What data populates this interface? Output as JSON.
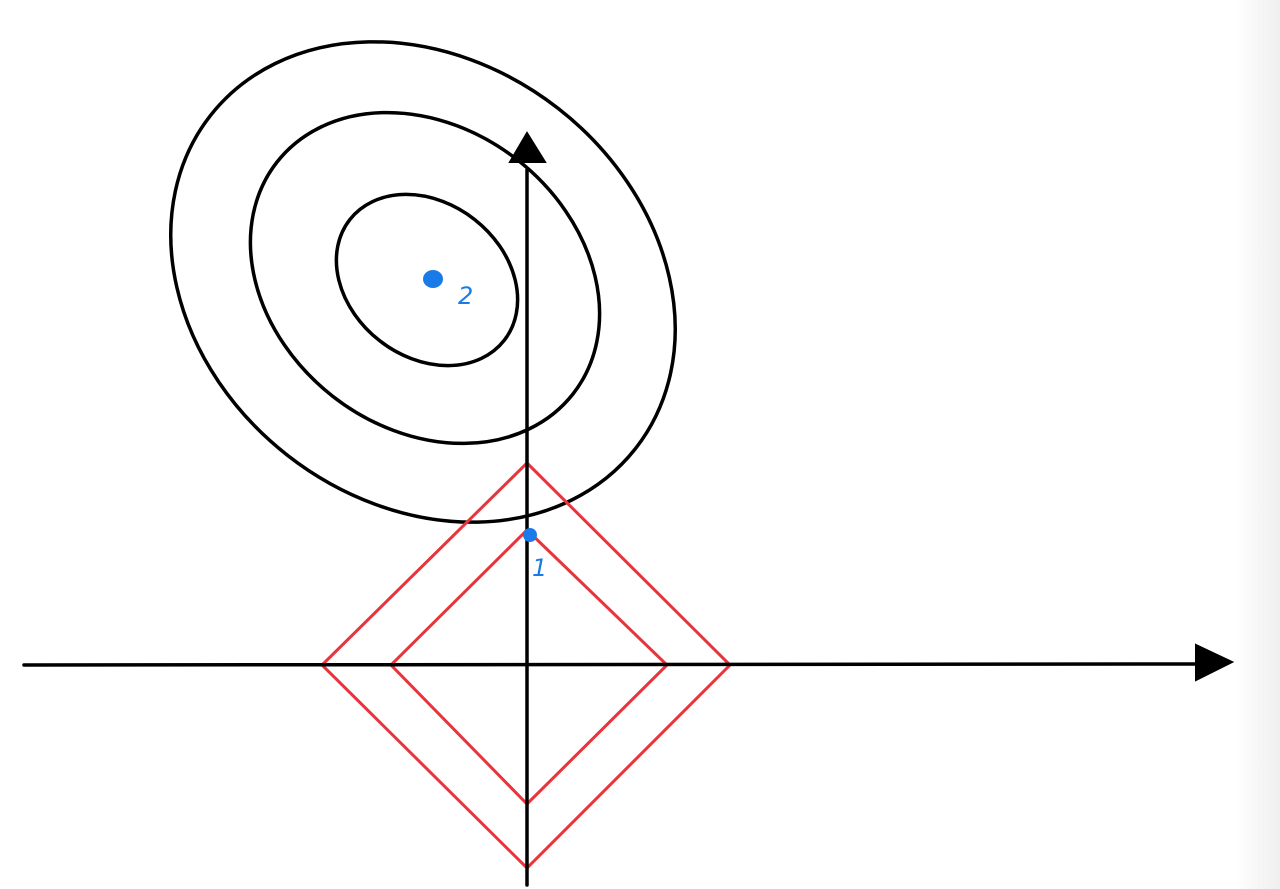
{
  "colors": {
    "axes": "#000000",
    "contours": "#000000",
    "constraint": "#e8343c",
    "points": "#1a7be8",
    "background": "#ffffff"
  },
  "labels": {
    "point_1": "1",
    "point_2": "2"
  },
  "icons": {
    "x_arrow": "arrow-right-icon",
    "y_arrow": "arrow-up-icon"
  }
}
